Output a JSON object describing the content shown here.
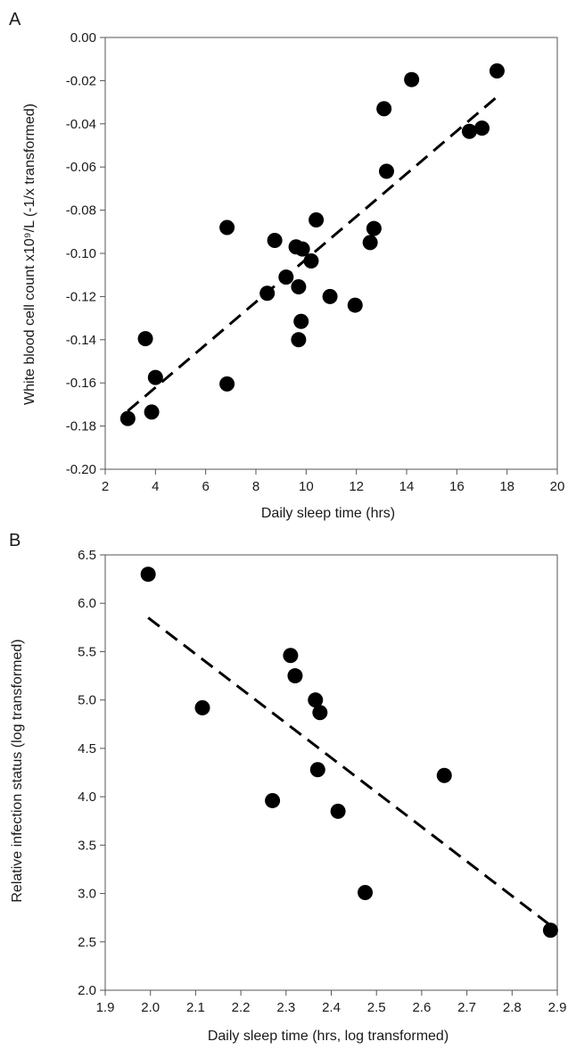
{
  "chart_data": [
    {
      "panel": "A",
      "type": "scatter",
      "title": "",
      "xlabel": "Daily sleep time (hrs)",
      "ylabel": "White blood cell count  x10⁹/L (-1/x transformed)",
      "xlim": [
        2,
        20
      ],
      "ylim": [
        -0.2,
        0
      ],
      "xticks": [
        2,
        4,
        6,
        8,
        10,
        12,
        14,
        16,
        18,
        20
      ],
      "yticks": [
        0,
        -0.02,
        -0.04,
        -0.06,
        -0.08,
        -0.1,
        -0.12,
        -0.14,
        -0.16,
        -0.18,
        -0.2
      ],
      "xtick_labels": [
        "2",
        "4",
        "6",
        "8",
        "10",
        "12",
        "14",
        "16",
        "18",
        "20"
      ],
      "ytick_labels": [
        "0.00",
        "-0.02",
        "-0.04",
        "-0.06",
        "-0.08",
        "-0.10",
        "-0.12",
        "-0.14",
        "-0.16",
        "-0.18",
        "-0.20"
      ],
      "grid": false,
      "legend": "none",
      "marker_color": "#000000",
      "points": [
        {
          "x": 2.9,
          "y": -0.1765
        },
        {
          "x": 3.6,
          "y": -0.1395
        },
        {
          "x": 3.85,
          "y": -0.1735
        },
        {
          "x": 4.0,
          "y": -0.1575
        },
        {
          "x": 6.85,
          "y": -0.088
        },
        {
          "x": 6.85,
          "y": -0.1605
        },
        {
          "x": 8.45,
          "y": -0.1185
        },
        {
          "x": 8.75,
          "y": -0.094
        },
        {
          "x": 9.2,
          "y": -0.111
        },
        {
          "x": 9.6,
          "y": -0.097
        },
        {
          "x": 9.7,
          "y": -0.1155
        },
        {
          "x": 9.7,
          "y": -0.14
        },
        {
          "x": 9.8,
          "y": -0.1315
        },
        {
          "x": 9.85,
          "y": -0.098
        },
        {
          "x": 10.2,
          "y": -0.1035
        },
        {
          "x": 10.4,
          "y": -0.0845
        },
        {
          "x": 10.95,
          "y": -0.12
        },
        {
          "x": 11.95,
          "y": -0.124
        },
        {
          "x": 12.55,
          "y": -0.095
        },
        {
          "x": 12.7,
          "y": -0.0885
        },
        {
          "x": 13.1,
          "y": -0.033
        },
        {
          "x": 13.2,
          "y": -0.062
        },
        {
          "x": 14.2,
          "y": -0.0195
        },
        {
          "x": 16.5,
          "y": -0.0435
        },
        {
          "x": 17.0,
          "y": -0.042
        },
        {
          "x": 17.6,
          "y": -0.0155
        }
      ],
      "trendline": {
        "style": "dashed",
        "x": [
          2.9,
          17.6
        ],
        "y": [
          -0.173,
          -0.0275
        ]
      }
    },
    {
      "panel": "B",
      "type": "scatter",
      "title": "",
      "xlabel": "Daily sleep time (hrs, log transformed)",
      "ylabel": "Relative  infection status (log transformed)",
      "xlim": [
        1.9,
        2.9
      ],
      "ylim": [
        2.0,
        6.5
      ],
      "xticks": [
        1.9,
        2.0,
        2.1,
        2.2,
        2.3,
        2.4,
        2.5,
        2.6,
        2.7,
        2.8,
        2.9
      ],
      "yticks": [
        2.0,
        2.5,
        3.0,
        3.5,
        4.0,
        4.5,
        5.0,
        5.5,
        6.0,
        6.5
      ],
      "xtick_labels": [
        "1.9",
        "2.0",
        "2.1",
        "2.2",
        "2.3",
        "2.4",
        "2.5",
        "2.6",
        "2.7",
        "2.8",
        "2.9"
      ],
      "ytick_labels": [
        "2.0",
        "2.5",
        "3.0",
        "3.5",
        "4.0",
        "4.5",
        "5.0",
        "5.5",
        "6.0",
        "6.5"
      ],
      "grid": false,
      "legend": "none",
      "marker_color": "#000000",
      "points": [
        {
          "x": 1.995,
          "y": 6.3
        },
        {
          "x": 2.115,
          "y": 4.92
        },
        {
          "x": 2.27,
          "y": 3.96
        },
        {
          "x": 2.31,
          "y": 5.46
        },
        {
          "x": 2.32,
          "y": 5.25
        },
        {
          "x": 2.365,
          "y": 5.0
        },
        {
          "x": 2.37,
          "y": 4.28
        },
        {
          "x": 2.375,
          "y": 4.87
        },
        {
          "x": 2.415,
          "y": 3.85
        },
        {
          "x": 2.475,
          "y": 3.01
        },
        {
          "x": 2.65,
          "y": 4.22
        },
        {
          "x": 2.885,
          "y": 2.62
        }
      ],
      "trendline": {
        "style": "dashed",
        "x": [
          1.995,
          2.885
        ],
        "y": [
          5.85,
          2.67
        ]
      }
    }
  ]
}
